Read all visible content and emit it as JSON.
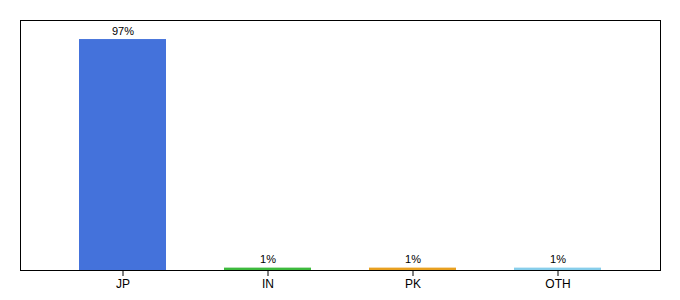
{
  "chart_data": {
    "type": "bar",
    "categories": [
      "JP",
      "IN",
      "PK",
      "OTH"
    ],
    "values": [
      97,
      1,
      1,
      1
    ],
    "value_labels": [
      "97%",
      "1%",
      "1%",
      "1%"
    ],
    "data_labels": true,
    "colors": [
      "#4472db",
      "#3dba3d",
      "#e8a020",
      "#87ceeb"
    ],
    "ylim": [
      0,
      105
    ],
    "tick_labels": "x",
    "grid": false
  }
}
